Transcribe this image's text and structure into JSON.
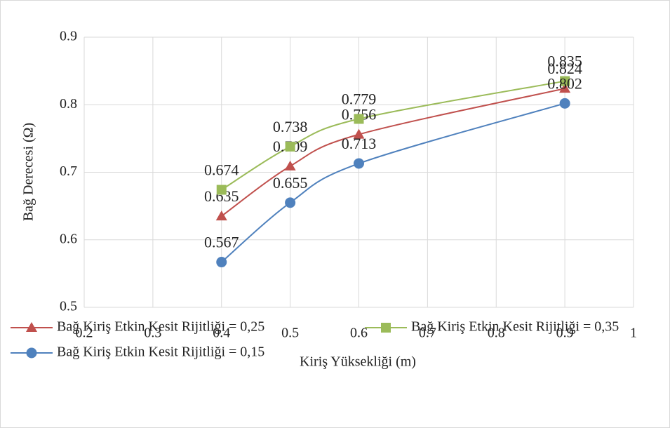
{
  "chart_data": {
    "type": "scatter-smooth",
    "x_label": "Kiriş Yüksekliği (m)",
    "y_label": "Bağ Derecesi (Ω)",
    "x": [
      0.4,
      0.5,
      0.6,
      0.9
    ],
    "series": [
      {
        "name": "Bağ Kiriş Etkin Kesit Rijitliği = 0,25",
        "color": "#c0504d",
        "marker": "triangle",
        "values": [
          0.635,
          0.709,
          0.756,
          0.824
        ]
      },
      {
        "name": "Bağ Kiriş Etkin Kesit Rijitliği = 0,35",
        "color": "#9bbb59",
        "marker": "square",
        "values": [
          0.674,
          0.738,
          0.779,
          0.835
        ]
      },
      {
        "name": "Bağ Kiriş Etkin Kesit Rijitliği = 0,15",
        "color": "#4f81bd",
        "marker": "circle",
        "values": [
          0.567,
          0.655,
          0.713,
          0.802
        ]
      }
    ],
    "xlim": [
      0.2,
      1
    ],
    "xticks": [
      0.2,
      0.3,
      0.4,
      0.5,
      0.6,
      0.7,
      0.8,
      0.9,
      1
    ],
    "ylim": [
      0.5,
      0.9
    ],
    "yticks": [
      0.5,
      0.6,
      0.7,
      0.8,
      0.9
    ],
    "grid": true,
    "legend": "bottom"
  }
}
